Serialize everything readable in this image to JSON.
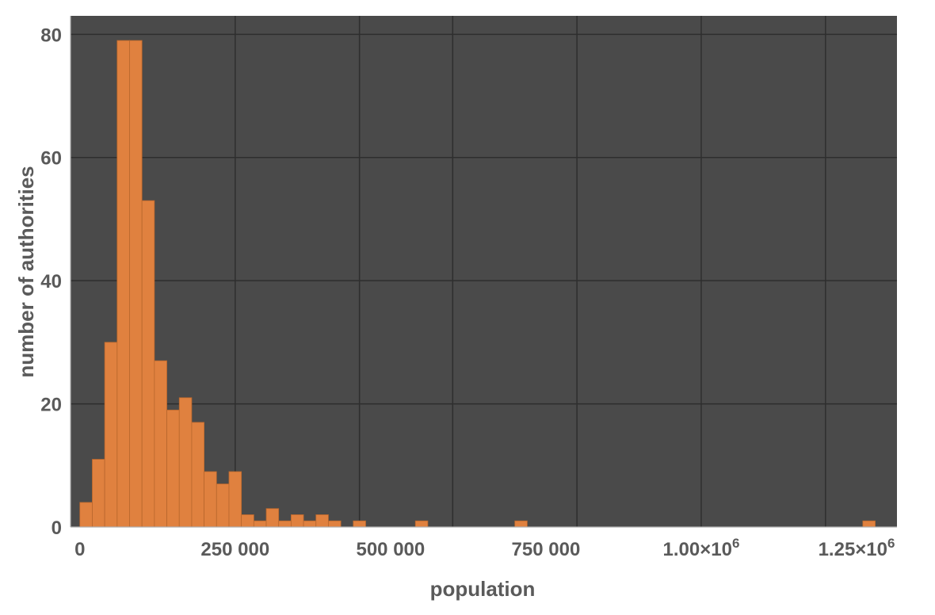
{
  "chart_data": {
    "type": "bar",
    "title": "",
    "xlabel": "population",
    "ylabel": "number of authorities",
    "xlim": [
      -15000,
      1315000
    ],
    "ylim": [
      0,
      83
    ],
    "bin_width": 20000,
    "grid": true,
    "legend": "none",
    "colors": {
      "plot_background": "#4a4a4a",
      "bar_fill": "#e0813f",
      "bar_edge": "#b8672d",
      "grid": "#2e2e2e",
      "text": "#5a5a5a"
    },
    "x_ticks": [
      {
        "value": 0,
        "label": "0"
      },
      {
        "value": 250000,
        "label": "250 000"
      },
      {
        "value": 500000,
        "label": "500 000"
      },
      {
        "value": 750000,
        "label": "750 000"
      },
      {
        "value": 1000000,
        "label": "1.00×10",
        "exp": "6"
      },
      {
        "value": 1250000,
        "label": "1.25×10",
        "exp": "6"
      }
    ],
    "y_ticks": [
      {
        "value": 0,
        "label": "0"
      },
      {
        "value": 20,
        "label": "20"
      },
      {
        "value": 40,
        "label": "40"
      },
      {
        "value": 60,
        "label": "60"
      },
      {
        "value": 80,
        "label": "80"
      }
    ],
    "bins": [
      {
        "x0": 0,
        "x1": 20000,
        "count": 4
      },
      {
        "x0": 20000,
        "x1": 40000,
        "count": 11
      },
      {
        "x0": 40000,
        "x1": 60000,
        "count": 30
      },
      {
        "x0": 60000,
        "x1": 80000,
        "count": 79
      },
      {
        "x0": 80000,
        "x1": 100000,
        "count": 79
      },
      {
        "x0": 100000,
        "x1": 120000,
        "count": 53
      },
      {
        "x0": 120000,
        "x1": 140000,
        "count": 27
      },
      {
        "x0": 140000,
        "x1": 160000,
        "count": 19
      },
      {
        "x0": 160000,
        "x1": 180000,
        "count": 21
      },
      {
        "x0": 180000,
        "x1": 200000,
        "count": 17
      },
      {
        "x0": 200000,
        "x1": 220000,
        "count": 9
      },
      {
        "x0": 220000,
        "x1": 240000,
        "count": 7
      },
      {
        "x0": 240000,
        "x1": 260000,
        "count": 9
      },
      {
        "x0": 260000,
        "x1": 280000,
        "count": 2
      },
      {
        "x0": 280000,
        "x1": 300000,
        "count": 1
      },
      {
        "x0": 300000,
        "x1": 320000,
        "count": 3
      },
      {
        "x0": 320000,
        "x1": 340000,
        "count": 1
      },
      {
        "x0": 340000,
        "x1": 360000,
        "count": 2
      },
      {
        "x0": 360000,
        "x1": 380000,
        "count": 1
      },
      {
        "x0": 380000,
        "x1": 400000,
        "count": 2
      },
      {
        "x0": 400000,
        "x1": 420000,
        "count": 1
      },
      {
        "x0": 440000,
        "x1": 460000,
        "count": 1
      },
      {
        "x0": 540000,
        "x1": 560000,
        "count": 1
      },
      {
        "x0": 700000,
        "x1": 720000,
        "count": 1
      },
      {
        "x0": 1260000,
        "x1": 1280000,
        "count": 1
      }
    ]
  }
}
